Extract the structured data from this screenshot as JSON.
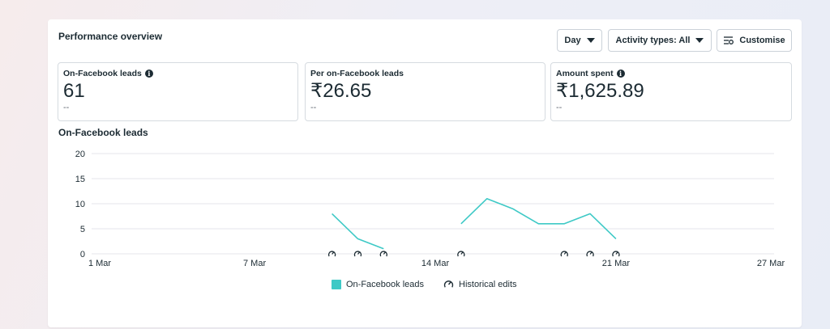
{
  "overview": {
    "title": "Performance overview"
  },
  "controls": {
    "day_label": "Day",
    "activity_label": "Activity types: All",
    "customise_label": "Customise"
  },
  "metrics": [
    {
      "label": "On-Facebook leads",
      "value": "61",
      "sub": "--",
      "has_info": true
    },
    {
      "label": "Per on-Facebook leads",
      "value": "₹26.65",
      "sub": "--",
      "has_info": false
    },
    {
      "label": "Amount spent",
      "value": "₹1,625.89",
      "sub": "--",
      "has_info": true
    }
  ],
  "info_glyph": "i",
  "chart_data": {
    "type": "line",
    "title": "On-Facebook leads",
    "x_tick_labels": [
      "1 Mar",
      "7 Mar",
      "14 Mar",
      "21 Mar",
      "27 Mar"
    ],
    "x_tick_days": [
      1,
      7,
      14,
      21,
      27
    ],
    "ylim": [
      0,
      20
    ],
    "y_ticks": [
      0,
      5,
      10,
      15,
      20
    ],
    "grid": true,
    "line_color": "#3ec9c6",
    "series": [
      {
        "name": "On-Facebook leads",
        "segments": [
          [
            {
              "x": 10,
              "y": 8
            },
            {
              "x": 11,
              "y": 3
            },
            {
              "x": 12,
              "y": 1
            }
          ],
          [
            {
              "x": 15,
              "y": 6
            },
            {
              "x": 16,
              "y": 11
            },
            {
              "x": 17,
              "y": 9
            },
            {
              "x": 18,
              "y": 6
            },
            {
              "x": 19,
              "y": 6
            },
            {
              "x": 20,
              "y": 8
            },
            {
              "x": 21,
              "y": 3
            }
          ]
        ]
      }
    ],
    "historical_edit_days": [
      10,
      11,
      12,
      15,
      19,
      20,
      21
    ],
    "legend": [
      {
        "name": "On-Facebook leads",
        "icon": "teal-square"
      },
      {
        "name": "Historical edits",
        "icon": "gauge-icon"
      }
    ],
    "legend_position": "bottom-center"
  }
}
